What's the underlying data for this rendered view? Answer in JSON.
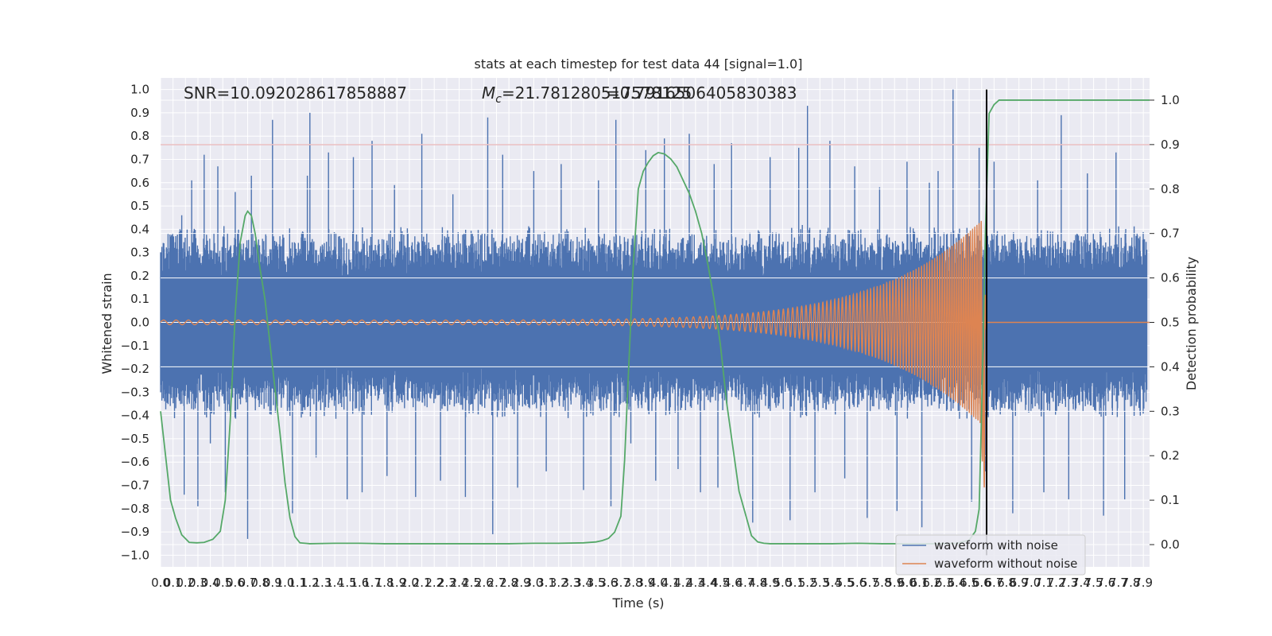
{
  "chart_data": {
    "type": "line",
    "title": "stats at each timestep for test data 44 [signal=1.0]",
    "xlabel": "Time (s)",
    "ylabel": "Whitened strain",
    "y2label": "Detection probability",
    "xlim": [
      0.0,
      7.95
    ],
    "ylim": [
      -1.05,
      1.05
    ],
    "y2lim": [
      -0.05,
      1.05
    ],
    "x_ticks": [
      0.0,
      0.1,
      0.2,
      0.3,
      0.4,
      0.5,
      0.6,
      0.7,
      0.8,
      0.9,
      1.0,
      1.1,
      1.2,
      1.3,
      1.4,
      1.5,
      1.6,
      1.7,
      1.8,
      1.9,
      2.0,
      2.1,
      2.2,
      2.3,
      2.4,
      2.5,
      2.6,
      2.7,
      2.8,
      2.9,
      3.0,
      3.1,
      3.2,
      3.3,
      3.4,
      3.5,
      3.6,
      3.7,
      3.8,
      3.9,
      4.0,
      4.1,
      4.2,
      4.3,
      4.4,
      4.5,
      4.6,
      4.7,
      4.8,
      4.9,
      5.0,
      5.1,
      5.2,
      5.3,
      5.4,
      5.5,
      5.6,
      5.7,
      5.8,
      5.9,
      6.0,
      6.1,
      6.2,
      6.3,
      6.4,
      6.5,
      6.6,
      6.7,
      6.8,
      6.9,
      7.0,
      7.1,
      7.2,
      7.3,
      7.4,
      7.5,
      7.6,
      7.7,
      7.8,
      7.9
    ],
    "x_tick_labels": [
      "0.0",
      "0.1",
      "0.2",
      "0.3",
      "0.4",
      "0.5",
      "0.6",
      "0.7",
      "0.8",
      "0.9",
      "1.0",
      "1.1",
      "1.2",
      "1.3",
      "1.4",
      "1.5",
      "1.6",
      "1.7",
      "1.8",
      "1.9",
      "2.0",
      "2.1",
      "2.2",
      "2.3",
      "2.4",
      "2.5",
      "2.6",
      "2.7",
      "2.8",
      "2.9",
      "3.0",
      "3.1",
      "3.2",
      "3.3",
      "3.4",
      "3.5",
      "3.6",
      "3.7",
      "3.8",
      "3.9",
      "4.0",
      "4.1",
      "4.2",
      "4.3",
      "4.4",
      "4.5",
      "4.6",
      "4.7",
      "4.8",
      "4.9",
      "5.0",
      "5.1",
      "5.2",
      "5.3",
      "5.4",
      "5.5",
      "5.6",
      "5.7",
      "5.8",
      "5.9",
      "6.0",
      "6.1",
      "6.2",
      "6.3",
      "6.4",
      "6.5",
      "6.6",
      "6.7",
      "6.8",
      "6.9",
      "7.0",
      "7.1",
      "7.2",
      "7.3",
      "7.4",
      "7.5",
      "7.6",
      "7.7",
      "7.8",
      "7.9"
    ],
    "y_ticks": [
      -1.0,
      -0.9,
      -0.8,
      -0.7,
      -0.6,
      -0.5,
      -0.4,
      -0.3,
      -0.2,
      -0.1,
      0.0,
      0.1,
      0.2,
      0.3,
      0.4,
      0.5,
      0.6,
      0.7,
      0.8,
      0.9,
      1.0
    ],
    "y_tick_labels": [
      "−1.0",
      "−0.9",
      "−0.8",
      "−0.7",
      "−0.6",
      "−0.5",
      "−0.4",
      "−0.3",
      "−0.2",
      "−0.1",
      "0.0",
      "0.1",
      "0.2",
      "0.3",
      "0.4",
      "0.5",
      "0.6",
      "0.7",
      "0.8",
      "0.9",
      "1.0"
    ],
    "y2_ticks": [
      0.0,
      0.1,
      0.2,
      0.3,
      0.4,
      0.5,
      0.6,
      0.7,
      0.8,
      0.9,
      1.0
    ],
    "y2_tick_labels": [
      "0.0",
      "0.1",
      "0.2",
      "0.3",
      "0.4",
      "0.5",
      "0.6",
      "0.7",
      "0.8",
      "0.9",
      "1.0"
    ],
    "annotations": {
      "snr": "SNR=10.092028617858887",
      "mc_symbol": "M",
      "mc_sub": "c",
      "mc_value": "=21.781280517578125",
      "overlap_value": "=0.7916506405830383"
    },
    "threshold_line": {
      "y2": 0.9,
      "color": "#c44e52"
    },
    "merger_time_line": {
      "x": 6.64,
      "y_from": -1.0,
      "y_to": 1.0,
      "color": "#000000"
    },
    "series": [
      {
        "name": "waveform with noise",
        "color": "#4c72b0",
        "axis": "left",
        "style": "dense_noise",
        "typical_envelope": 0.42,
        "peaks_x": [
          0.17,
          0.19,
          0.25,
          0.3,
          0.35,
          0.4,
          0.46,
          0.52,
          0.6,
          0.7,
          0.73,
          0.9,
          1.06,
          1.18,
          1.2,
          1.25,
          1.35,
          1.5,
          1.55,
          1.62,
          1.7,
          1.82,
          1.88,
          2.05,
          2.1,
          2.25,
          2.35,
          2.45,
          2.63,
          2.67,
          2.75,
          2.87,
          3.0,
          3.1,
          3.22,
          3.4,
          3.52,
          3.62,
          3.66,
          3.78,
          3.9,
          3.98,
          4.05,
          4.16,
          4.25,
          4.34,
          4.45,
          4.48,
          4.59,
          4.76,
          4.9,
          5.06,
          5.13,
          5.2,
          5.26,
          5.38,
          5.5,
          5.58,
          5.68,
          5.78,
          5.92,
          6.0,
          6.12,
          6.18,
          6.25,
          6.37,
          6.52,
          6.58,
          6.63,
          6.7,
          6.85,
          7.05,
          7.1,
          7.24,
          7.3,
          7.45,
          7.58,
          7.68,
          7.75
        ],
        "peaks_y": [
          0.46,
          -0.74,
          0.61,
          -0.79,
          0.72,
          -0.52,
          0.67,
          -0.73,
          0.56,
          -0.93,
          0.63,
          0.87,
          -0.82,
          0.63,
          0.9,
          -0.58,
          0.73,
          -0.76,
          0.71,
          -0.73,
          0.78,
          -0.66,
          0.59,
          -0.75,
          0.81,
          -0.68,
          0.55,
          -0.75,
          0.88,
          -0.91,
          0.72,
          -0.71,
          0.65,
          -0.64,
          0.68,
          -0.72,
          0.61,
          -0.79,
          0.87,
          -0.52,
          0.74,
          -0.68,
          0.79,
          -0.63,
          0.81,
          -0.73,
          0.68,
          -0.71,
          0.77,
          -0.86,
          0.71,
          -0.85,
          0.75,
          0.93,
          -0.73,
          0.78,
          -0.67,
          0.67,
          -0.84,
          0.58,
          -0.81,
          0.69,
          -0.88,
          0.6,
          0.65,
          1.0,
          -0.77,
          0.75,
          -0.64,
          0.69,
          -0.82,
          0.61,
          -0.73,
          0.89,
          -0.76,
          0.64,
          -0.83,
          0.73,
          -0.76
        ]
      },
      {
        "name": "waveform without noise",
        "color": "#dd8452",
        "axis": "left",
        "style": "chirp",
        "t_merger": 6.64,
        "start_amplitude": 0.01,
        "peak_amplitude": 0.46,
        "peak_time": 6.6,
        "start_frequency": 10,
        "end_frequency": 60
      },
      {
        "name": "detection probability",
        "color": "#55a868",
        "axis": "right",
        "x": [
          0.0,
          0.04,
          0.08,
          0.12,
          0.17,
          0.23,
          0.29,
          0.35,
          0.42,
          0.48,
          0.52,
          0.56,
          0.6,
          0.64,
          0.68,
          0.7,
          0.73,
          0.76,
          0.8,
          0.84,
          0.88,
          0.92,
          0.96,
          1.0,
          1.04,
          1.08,
          1.12,
          1.2,
          1.4,
          1.6,
          1.8,
          2.0,
          2.2,
          2.4,
          2.6,
          2.8,
          3.0,
          3.2,
          3.4,
          3.5,
          3.55,
          3.6,
          3.65,
          3.7,
          3.73,
          3.76,
          3.8,
          3.84,
          3.88,
          3.92,
          3.96,
          4.0,
          4.05,
          4.1,
          4.15,
          4.2,
          4.25,
          4.3,
          4.35,
          4.4,
          4.45,
          4.5,
          4.55,
          4.6,
          4.65,
          4.7,
          4.75,
          4.8,
          4.85,
          4.9,
          5.0,
          5.2,
          5.4,
          5.6,
          5.8,
          6.0,
          6.2,
          6.4,
          6.5,
          6.55,
          6.58,
          6.6,
          6.63,
          6.66,
          6.7,
          6.74,
          6.78,
          6.82,
          6.86,
          6.9,
          7.0,
          7.2,
          7.4,
          7.6,
          7.8,
          7.95
        ],
        "y": [
          0.3,
          0.2,
          0.1,
          0.06,
          0.022,
          0.005,
          0.004,
          0.005,
          0.012,
          0.03,
          0.1,
          0.28,
          0.52,
          0.68,
          0.74,
          0.75,
          0.74,
          0.7,
          0.62,
          0.55,
          0.45,
          0.35,
          0.25,
          0.14,
          0.06,
          0.018,
          0.004,
          0.002,
          0.003,
          0.003,
          0.002,
          0.002,
          0.002,
          0.002,
          0.002,
          0.002,
          0.003,
          0.003,
          0.004,
          0.006,
          0.009,
          0.014,
          0.028,
          0.064,
          0.19,
          0.38,
          0.63,
          0.8,
          0.84,
          0.86,
          0.875,
          0.882,
          0.879,
          0.868,
          0.85,
          0.82,
          0.79,
          0.75,
          0.7,
          0.63,
          0.55,
          0.45,
          0.32,
          0.22,
          0.12,
          0.07,
          0.02,
          0.006,
          0.003,
          0.002,
          0.002,
          0.002,
          0.002,
          0.003,
          0.002,
          0.002,
          0.002,
          0.003,
          0.01,
          0.03,
          0.08,
          0.3,
          0.7,
          0.97,
          0.99,
          1.0,
          1.0,
          1.0,
          1.0,
          1.0,
          1.0,
          1.0,
          1.0,
          1.0,
          1.0,
          1.0
        ]
      }
    ],
    "legend": {
      "placement": "lower-right",
      "entries": [
        {
          "label": "waveform with noise",
          "color": "#4c72b0"
        },
        {
          "label": "waveform without noise",
          "color": "#dd8452"
        }
      ]
    },
    "grid": true,
    "style": {
      "axes_bg": "#eaeaf2",
      "grid_color": "#ffffff"
    }
  }
}
